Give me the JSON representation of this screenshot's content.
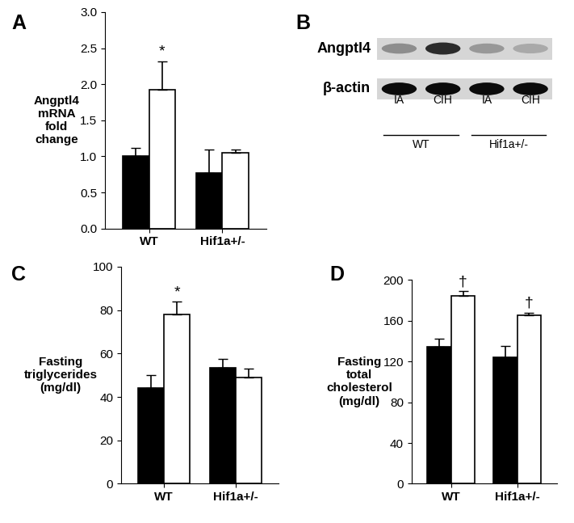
{
  "chart_data": [
    {
      "type": "bar",
      "title": "A",
      "y_label": "Angptl4\nmRNA\nfold\nchange",
      "categories": [
        "WT",
        "Hif1a+/-"
      ],
      "series": [
        {
          "color": "#000000",
          "values": [
            1.0,
            0.77
          ],
          "errors": [
            0.12,
            0.32
          ],
          "annotations": [
            null,
            null
          ]
        },
        {
          "color": "#ffffff",
          "values": [
            1.92,
            1.05
          ],
          "errors": [
            0.4,
            0.04
          ],
          "annotations": [
            "*",
            null
          ]
        }
      ],
      "ylim": [
        0,
        3
      ],
      "yticks": [
        {
          "value": 0,
          "label": "0.0"
        },
        {
          "value": 0.5,
          "label": "0.5"
        },
        {
          "value": 1,
          "label": "1.0"
        },
        {
          "value": 1.5,
          "label": "1.5"
        },
        {
          "value": 2,
          "label": "2.0"
        },
        {
          "value": 2.5,
          "label": "2.5"
        },
        {
          "value": 3,
          "label": "3.0"
        }
      ]
    },
    {
      "type": "blot",
      "title": "B",
      "rows": [
        {
          "name": "Angptl4",
          "values": [
            0.35,
            0.8,
            0.3,
            0.22
          ]
        },
        {
          "name": "β-actin",
          "values": [
            0.95,
            0.95,
            0.95,
            0.95
          ]
        }
      ],
      "lanes": [
        "IA",
        "CIH",
        "IA",
        "CIH"
      ],
      "groups": [
        "WT",
        "Hif1a+/-"
      ]
    },
    {
      "type": "bar",
      "title": "C",
      "y_label": "Fasting\ntriglycerides\n(mg/dl)",
      "categories": [
        "WT",
        "Hif1a+/-"
      ],
      "series": [
        {
          "color": "#000000",
          "values": [
            44,
            53.5
          ],
          "errors": [
            6,
            4
          ],
          "annotations": [
            null,
            null
          ]
        },
        {
          "color": "#ffffff",
          "values": [
            78,
            49
          ],
          "errors": [
            6,
            4
          ],
          "annotations": [
            "*",
            null
          ]
        }
      ],
      "ylim": [
        0,
        100
      ],
      "yticks": [
        0,
        20,
        40,
        60,
        80,
        100
      ]
    },
    {
      "type": "bar",
      "title": "D",
      "y_label": "Fasting\ntotal\ncholesterol\n(mg/dl)",
      "categories": [
        "WT",
        "Hif1a+/-"
      ],
      "series": [
        {
          "color": "#000000",
          "values": [
            134,
            124
          ],
          "errors": [
            8,
            11
          ],
          "annotations": [
            null,
            null
          ]
        },
        {
          "color": "#ffffff",
          "values": [
            184,
            165
          ],
          "errors": [
            5,
            3
          ],
          "annotations": [
            "†",
            "†"
          ]
        }
      ],
      "ylim": [
        0,
        200
      ],
      "yticks": [
        0,
        40,
        80,
        120,
        160,
        200
      ]
    }
  ]
}
